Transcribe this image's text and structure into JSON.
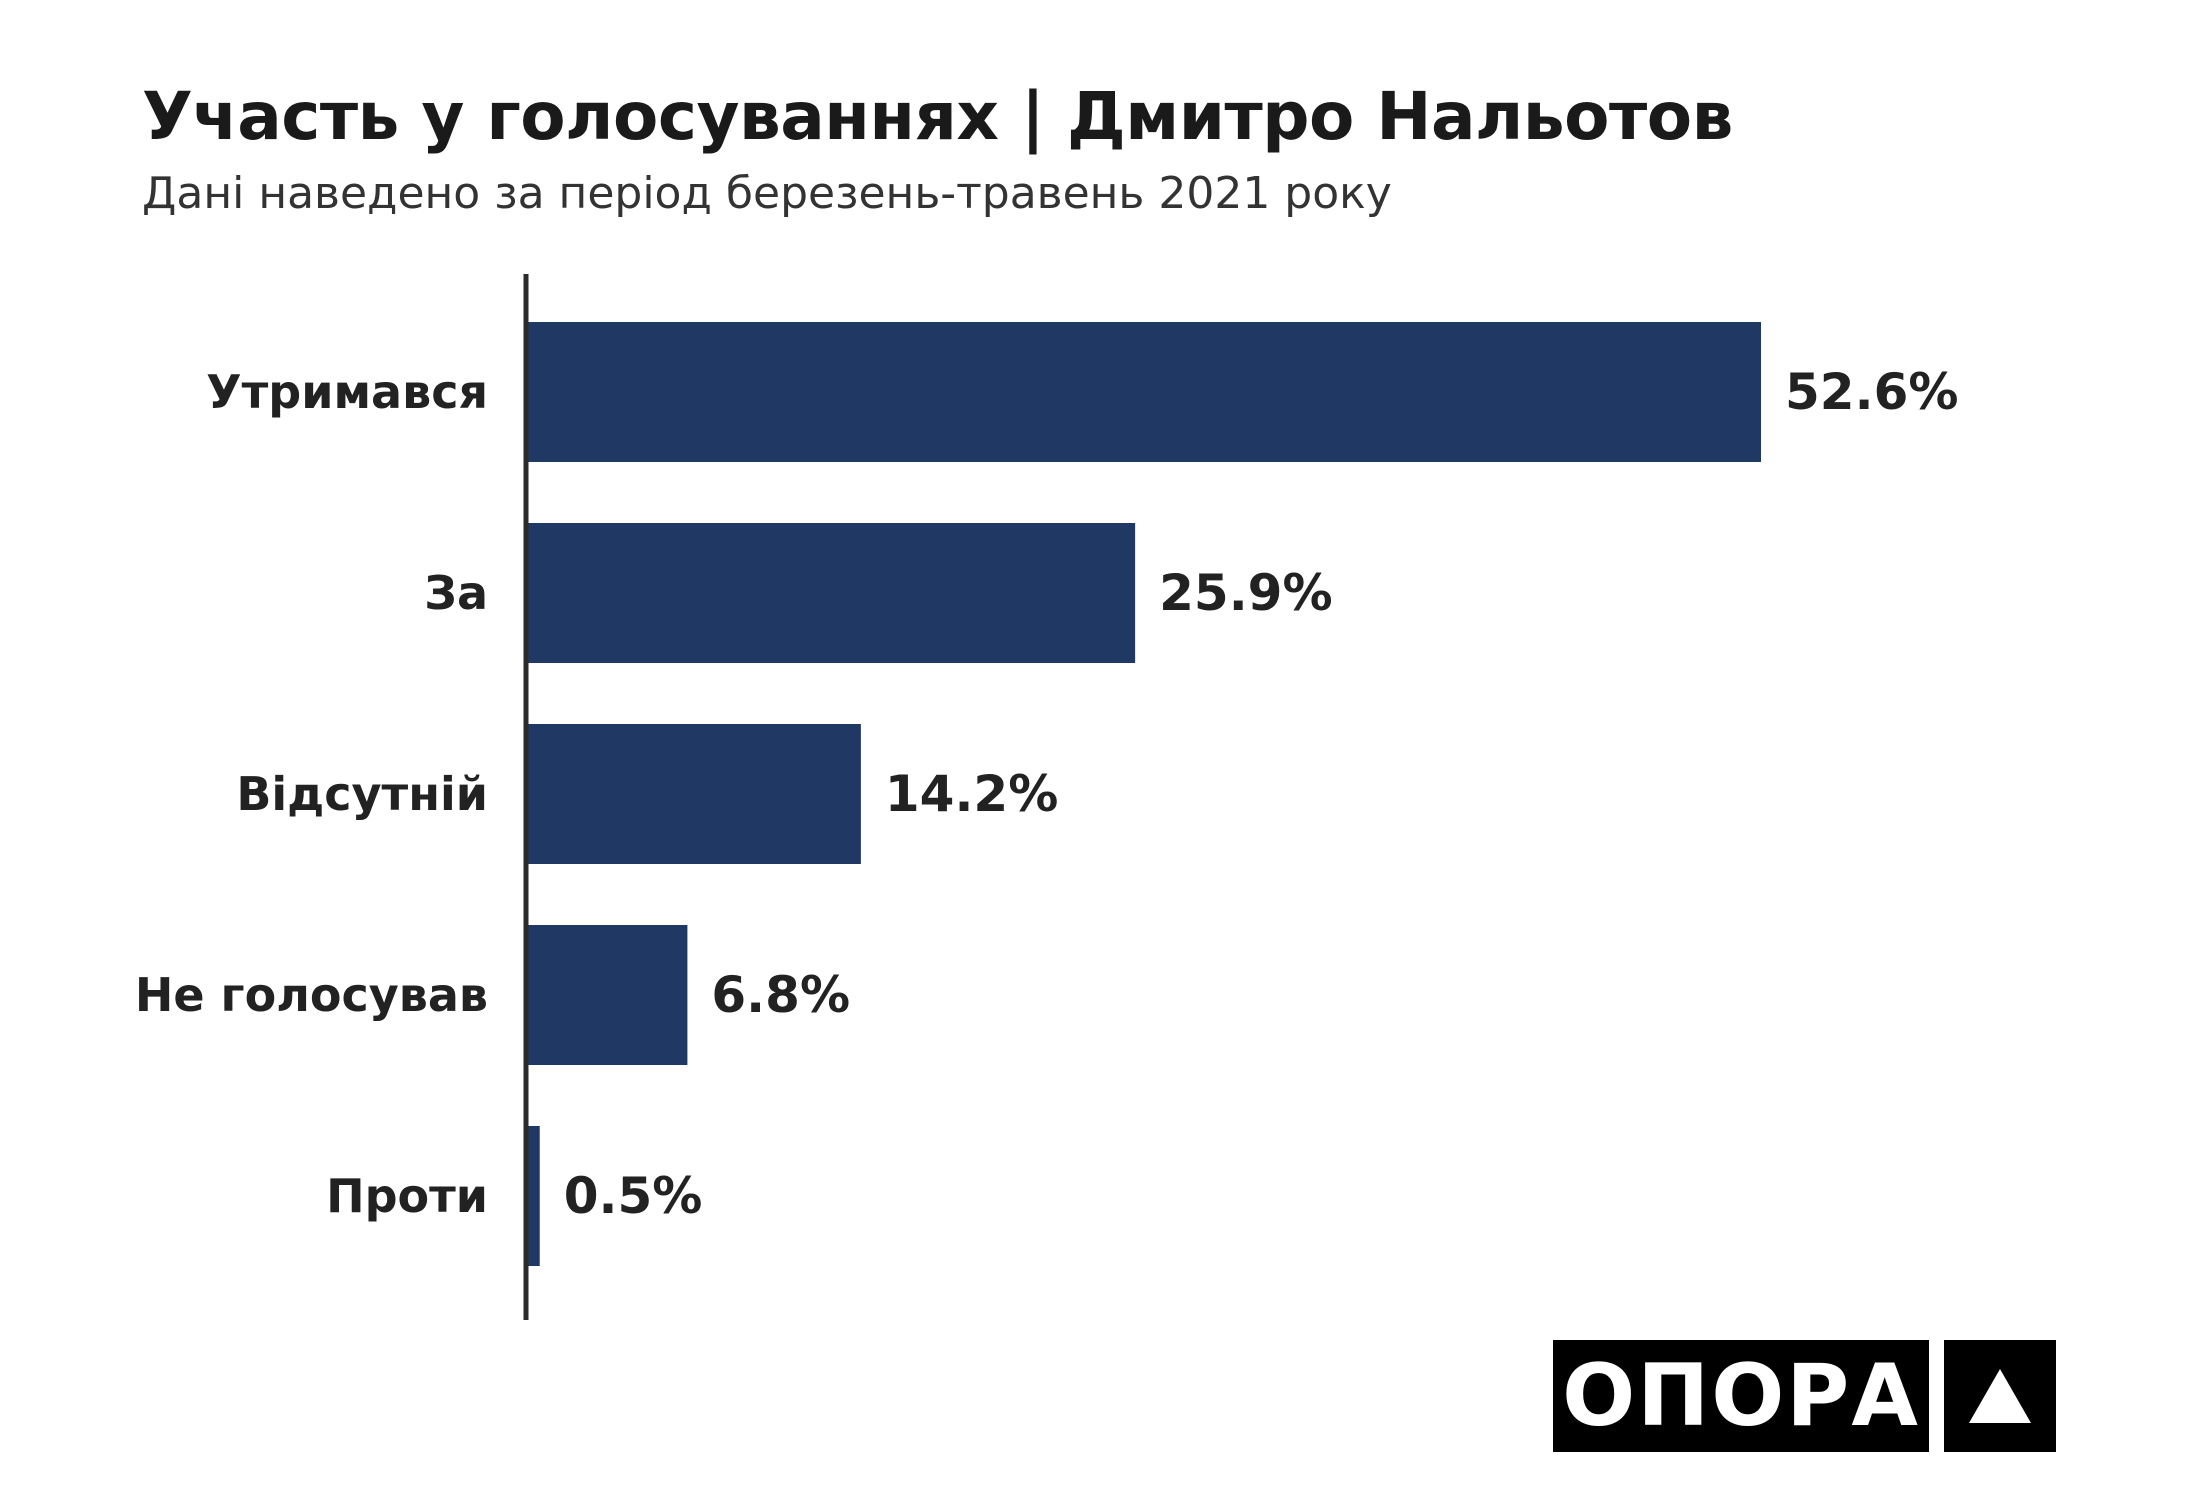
{
  "header": {
    "title": "Участь у голосуваннях | Дмитро Нальотов",
    "subtitle": "Дані наведено за період березень-травень 2021 року"
  },
  "logo": {
    "text": "ОПОРА",
    "mark_icon": "triangle-icon"
  },
  "colors": {
    "bar": "#1f3864",
    "axis": "#2b2b2b",
    "text": "#222222"
  },
  "chart_data": {
    "type": "bar",
    "orientation": "horizontal",
    "categories": [
      "Утримався",
      "За",
      "Відсутній",
      "Не голосував",
      "Проти"
    ],
    "values": [
      52.6,
      25.9,
      14.2,
      6.8,
      0.5
    ],
    "value_labels": [
      "52.6%",
      "25.9%",
      "14.2%",
      "6.8%",
      "0.5%"
    ],
    "unit": "%",
    "xlim": [
      0,
      60
    ],
    "grid": false,
    "legend": "none"
  }
}
